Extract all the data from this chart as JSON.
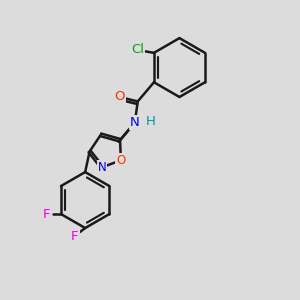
{
  "background_color": "#dcdcdc",
  "bond_color": "#1a1a1a",
  "bond_width": 1.8,
  "atom_colors": {
    "Cl": "#00aa00",
    "O": "#ff3300",
    "N": "#0000ee",
    "H": "#009999",
    "F": "#ee00ee"
  },
  "figsize": [
    3.0,
    3.0
  ],
  "dpi": 100
}
